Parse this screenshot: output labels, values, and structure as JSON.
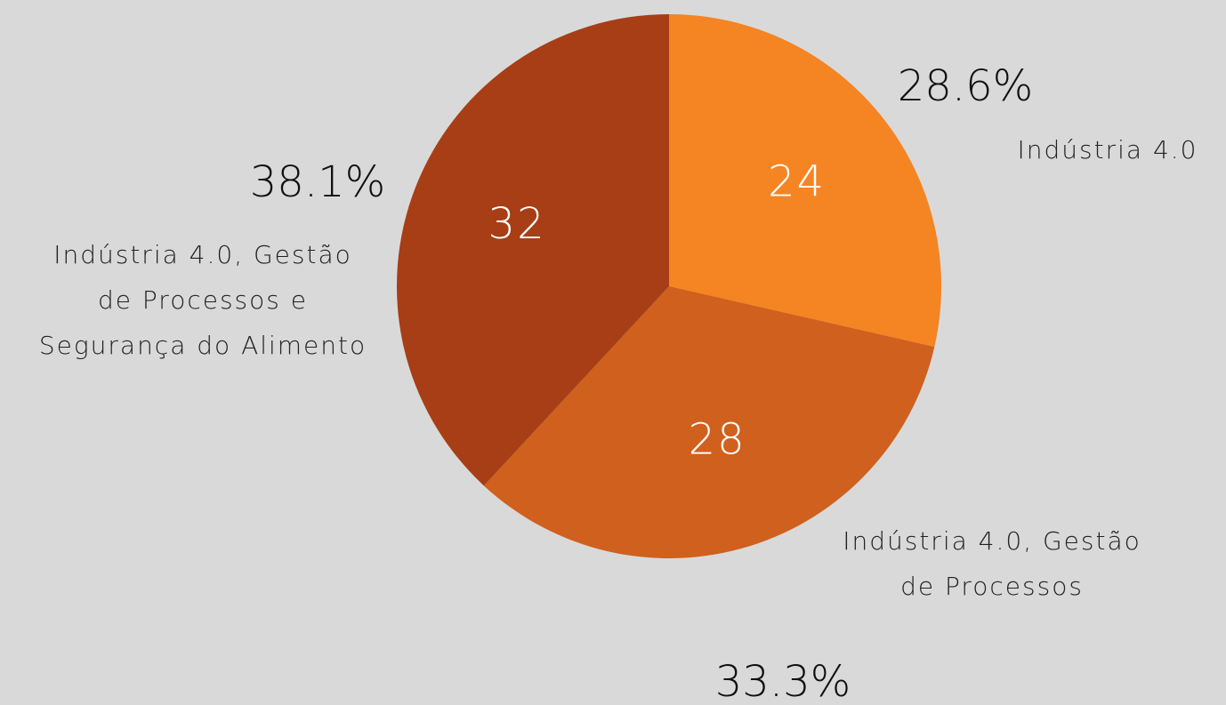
{
  "chart_data": {
    "type": "pie",
    "categories": [
      [
        "Indústria 4.0"
      ],
      [
        "Indústria 4.0, Gestão",
        "de Processos"
      ],
      [
        "Indústria 4.0, Gestão",
        "de Processos e",
        "Segurança do Alimento"
      ]
    ],
    "values": [
      24,
      28,
      32
    ],
    "percent_labels": [
      "28.6%",
      "33.3%",
      "38.1%"
    ],
    "colors": [
      "#f58423",
      "#d0601d",
      "#a73e16"
    ]
  }
}
